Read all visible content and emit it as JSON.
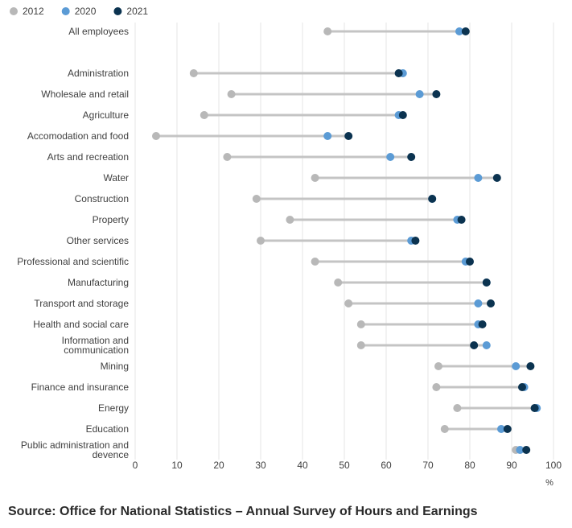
{
  "chart_data": {
    "type": "dot-range",
    "legend": [
      {
        "name": "2012",
        "color": "#b8b8b8"
      },
      {
        "name": "2020",
        "color": "#5b9bd5"
      },
      {
        "name": "2021",
        "color": "#0b3350"
      }
    ],
    "legend_position": "top-left",
    "categories": [
      "All employees",
      "",
      "Administration",
      "Wholesale and retail",
      "Agriculture",
      "Accomodation and food",
      "Arts and recreation",
      "Water",
      "Construction",
      "Property",
      "Other services",
      "Professional and scientific",
      "Manufacturing",
      "Transport and storage",
      "Health and social care",
      "Information and communication",
      "Mining",
      "Finance and insurance",
      "Energy",
      "Education",
      "Public administration and devence"
    ],
    "category_lines": [
      [
        "All employees"
      ],
      [],
      [
        "Administration"
      ],
      [
        "Wholesale and retail"
      ],
      [
        "Agriculture"
      ],
      [
        "Accomodation and food"
      ],
      [
        "Arts and recreation"
      ],
      [
        "Water"
      ],
      [
        "Construction"
      ],
      [
        "Property"
      ],
      [
        "Other services"
      ],
      [
        "Professional and scientific"
      ],
      [
        "Manufacturing"
      ],
      [
        "Transport and storage"
      ],
      [
        "Health and social care"
      ],
      [
        "Information and",
        "communication"
      ],
      [
        "Mining"
      ],
      [
        "Finance and insurance"
      ],
      [
        "Energy"
      ],
      [
        "Education"
      ],
      [
        "Public administration and",
        "devence"
      ]
    ],
    "series": [
      {
        "name": "2012",
        "values": [
          46,
          null,
          14,
          23,
          16.5,
          5,
          22,
          43,
          29,
          37,
          30,
          43,
          48.5,
          51,
          54,
          54,
          72.5,
          72,
          77,
          74,
          91
        ]
      },
      {
        "name": "2020",
        "values": [
          77.5,
          null,
          64,
          68,
          63,
          46,
          61,
          82,
          71,
          77,
          66,
          79,
          84,
          82,
          82,
          84,
          91,
          93,
          96,
          87.5,
          92
        ]
      },
      {
        "name": "2021",
        "values": [
          79,
          null,
          63,
          72,
          64,
          51,
          66,
          86.5,
          71,
          78,
          67,
          80,
          84,
          85,
          83,
          81,
          94.5,
          92.5,
          95.5,
          89,
          93.5
        ]
      }
    ],
    "xlim": [
      0,
      100
    ],
    "xticks": [
      0,
      10,
      20,
      30,
      40,
      50,
      60,
      70,
      80,
      90,
      100
    ],
    "xunit": "%",
    "grid": "vertical",
    "source": "Source: Office for National Statistics – Annual Survey of Hours and Earnings"
  }
}
